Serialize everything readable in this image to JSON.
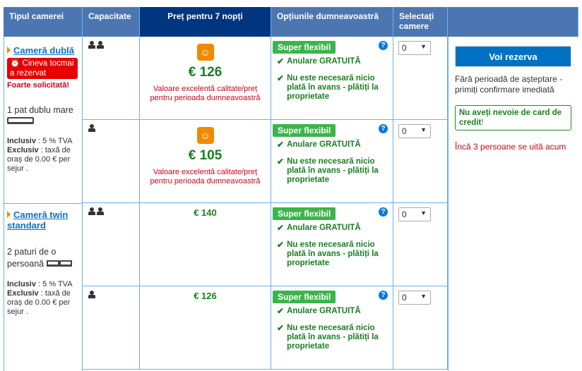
{
  "header": {
    "room_type": "Tipul camerei",
    "capacity": "Capacitate",
    "price": "Preț pentru 7 nopți",
    "options": "Opțiunile dumneavoastră",
    "select": "Selectați camere"
  },
  "rooms": [
    {
      "name": "Cameră dublă",
      "booked_badge": "Cineva tocmai a rezervat",
      "demand": "Foarte solicitată!",
      "beds": "1 pat dublu mare",
      "incl_label": "Inclusiv",
      "incl": ": 5 % TVA",
      "excl_label": "Exclusiv",
      "excl": ": taxă de oraș de 0.00 € per sejur .",
      "rates": [
        {
          "persons": 2,
          "price": "€ 126",
          "value_msg": "Valoare excelentă calitate/preț pentru perioada dumneavoastră",
          "qty": "0"
        },
        {
          "persons": 1,
          "price": "€ 105",
          "value_msg": "Valoare excelentă calitate/preț pentru perioada dumneavoastră",
          "qty": "0"
        }
      ]
    },
    {
      "name": "Cameră twin standard",
      "beds": "2 paturi de o persoană",
      "incl_label": "Inclusiv",
      "incl": ": 5 % TVA",
      "excl_label": "Exclusiv",
      "excl": ": taxă de oraș de 0.00 € per sejur .",
      "rates": [
        {
          "persons": 2,
          "price": "€ 140",
          "qty": "0"
        },
        {
          "persons": 1,
          "price": "€ 126",
          "qty": "0"
        }
      ]
    }
  ],
  "options": {
    "badge": "Super flexibil",
    "cancel": "Anulare GRATUITĂ",
    "prepay": "Nu este necesară nicio plată în avans - plătiți la proprietate"
  },
  "sidebar": {
    "reserve": "Voi rezerva",
    "instant": "Fără perioadă de așteptare - primiți confirmare imediată",
    "no_card": "Nu aveți nevoie de card de credit",
    "no_card_suffix": "!",
    "viewers": "Încă 3 persoane se uită acum"
  },
  "colors": {
    "header": "#4c76b2",
    "header_dark": "#003580",
    "green": "#1a7e23",
    "red": "#d0021b",
    "button": "#0071c2"
  }
}
